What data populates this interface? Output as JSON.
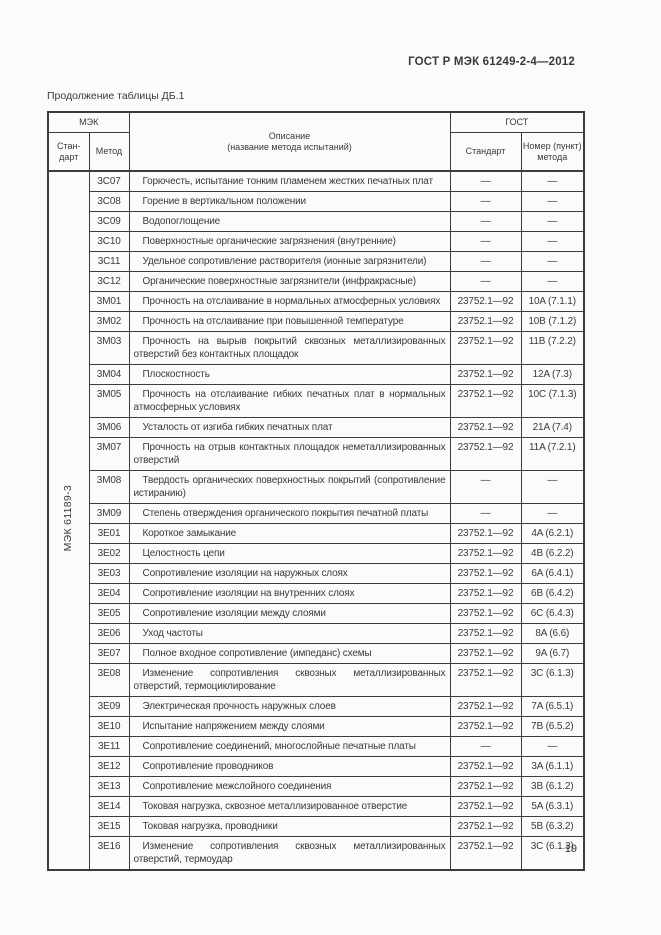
{
  "page": {
    "doc_number": "ГОСТ Р МЭК 61249-2-4—2012",
    "table_caption": "Продолжение таблицы ДБ.1",
    "page_number": "19"
  },
  "colors": {
    "ink": "#3a3a3a",
    "border": "#3d3d3d",
    "paper": "#fbfbfb"
  },
  "table": {
    "header": {
      "iec_group": "МЭК",
      "gost_group": "ГОСТ",
      "iec_standard": "Стан-\nдарт",
      "iec_method": "Метод",
      "description": "Описание\n(название метода испытаний)",
      "gost_standard": "Стандарт",
      "gost_method_number": "Номер (пункт)\nметода"
    },
    "iec_standard_label": "МЭК 61189-3",
    "rows": [
      {
        "method": "3C07",
        "description": "Горючесть, испытание тонким пламенем жестких печатных плат",
        "gost_standard": "—",
        "gost_method": "—"
      },
      {
        "method": "3C08",
        "description": "Горение в вертикальном положении",
        "gost_standard": "—",
        "gost_method": "—"
      },
      {
        "method": "3C09",
        "description": "Водопоглощение",
        "gost_standard": "—",
        "gost_method": "—"
      },
      {
        "method": "3C10",
        "description": "Поверхностные органические загрязнения (внутренние)",
        "gost_standard": "—",
        "gost_method": "—"
      },
      {
        "method": "3C11",
        "description": "Удельное сопротивление растворителя (ионные загрязнители)",
        "gost_standard": "—",
        "gost_method": "—"
      },
      {
        "method": "3C12",
        "description": "Органические поверхностные загрязнители (инфракрасные)",
        "gost_standard": "—",
        "gost_method": "—"
      },
      {
        "method": "3M01",
        "description": "Прочность на отслаивание в нормальных атмосферных условиях",
        "gost_standard": "23752.1—92",
        "gost_method": "10A (7.1.1)"
      },
      {
        "method": "3M02",
        "description": "Прочность на отслаивание при повышенной температуре",
        "gost_standard": "23752.1—92",
        "gost_method": "10B (7.1.2)"
      },
      {
        "method": "3M03",
        "description": "Прочность на вырыв покрытий сквозных металлизированных отверстий без контактных площадок",
        "gost_standard": "23752.1—92",
        "gost_method": "11B (7.2.2)"
      },
      {
        "method": "3M04",
        "description": "Плоскостность",
        "gost_standard": "23752.1—92",
        "gost_method": "12A (7.3)"
      },
      {
        "method": "3M05",
        "description": "Прочность на отслаивание гибких печатных плат в нормальных атмосферных условиях",
        "gost_standard": "23752.1—92",
        "gost_method": "10C (7.1.3)"
      },
      {
        "method": "3M06",
        "description": "Усталость от изгиба гибких печатных плат",
        "gost_standard": "23752.1—92",
        "gost_method": "21A (7.4)"
      },
      {
        "method": "3M07",
        "description": "Прочность на отрыв контактных площадок неметаллизированных отверстий",
        "gost_standard": "23752.1—92",
        "gost_method": "11A (7.2.1)"
      },
      {
        "method": "3M08",
        "description": "Твердость органических поверхностных покрытий (сопротивление истиранию)",
        "gost_standard": "—",
        "gost_method": "—"
      },
      {
        "method": "3M09",
        "description": "Степень отверждения органического покрытия печатной платы",
        "gost_standard": "—",
        "gost_method": "—"
      },
      {
        "method": "3E01",
        "description": "Короткое замыкание",
        "gost_standard": "23752.1—92",
        "gost_method": "4A (6.2.1)"
      },
      {
        "method": "3E02",
        "description": "Целостность цепи",
        "gost_standard": "23752.1—92",
        "gost_method": "4B (6.2.2)"
      },
      {
        "method": "3E03",
        "description": "Сопротивление изоляции на наружных слоях",
        "gost_standard": "23752.1—92",
        "gost_method": "6A (6.4.1)"
      },
      {
        "method": "3E04",
        "description": "Сопротивление изоляции на внутренних слоях",
        "gost_standard": "23752.1—92",
        "gost_method": "6B (6.4.2)"
      },
      {
        "method": "3E05",
        "description": "Сопротивление изоляции между слоями",
        "gost_standard": "23752.1—92",
        "gost_method": "6C (6.4.3)"
      },
      {
        "method": "3E06",
        "description": "Уход частоты",
        "gost_standard": "23752.1—92",
        "gost_method": "8A (6.6)"
      },
      {
        "method": "3E07",
        "description": "Полное входное сопротивление (импеданс) схемы",
        "gost_standard": "23752.1—92",
        "gost_method": "9A (6.7)"
      },
      {
        "method": "3E08",
        "description": "Изменение сопротивления сквозных металлизированных отверстий, термоциклирование",
        "gost_standard": "23752.1—92",
        "gost_method": "3C (6.1.3)"
      },
      {
        "method": "3E09",
        "description": "Электрическая прочность наружных слоев",
        "gost_standard": "23752.1—92",
        "gost_method": "7A (6.5.1)"
      },
      {
        "method": "3E10",
        "description": "Испытание напряжением между слоями",
        "gost_standard": "23752.1—92",
        "gost_method": "7B (6.5.2)"
      },
      {
        "method": "3E11",
        "description": "Сопротивление соединений, многослойные печатные платы",
        "gost_standard": "—",
        "gost_method": "—"
      },
      {
        "method": "3E12",
        "description": "Сопротивление проводников",
        "gost_standard": "23752.1—92",
        "gost_method": "3A (6.1.1)"
      },
      {
        "method": "3E13",
        "description": "Сопротивление межслойного соединения",
        "gost_standard": "23752.1—92",
        "gost_method": "3B (6.1.2)"
      },
      {
        "method": "3E14",
        "description": "Токовая нагрузка, сквозное металлизированное отверстие",
        "gost_standard": "23752.1—92",
        "gost_method": "5A (6.3.1)"
      },
      {
        "method": "3E15",
        "description": "Токовая нагрузка, проводники",
        "gost_standard": "23752.1—92",
        "gost_method": "5B (6.3.2)"
      },
      {
        "method": "3E16",
        "description": "Изменение сопротивления сквозных металлизированных отверстий, термоудар",
        "gost_standard": "23752.1—92",
        "gost_method": "3C (6.1.3)"
      }
    ]
  }
}
